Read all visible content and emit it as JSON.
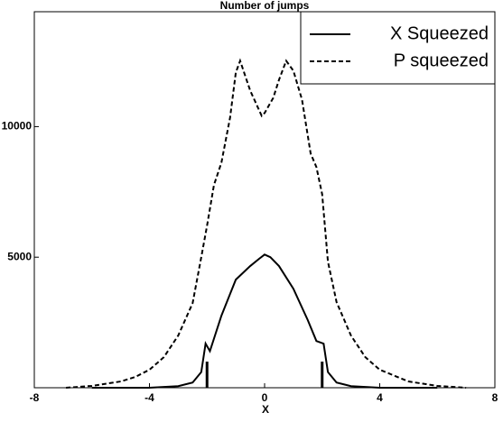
{
  "chart_data": {
    "type": "line",
    "title": "Number of jumps",
    "x_label": "X",
    "xlim": [
      -8,
      8
    ],
    "xticks": [
      -8,
      -4,
      0,
      4,
      8
    ],
    "ylim": [
      0,
      14400
    ],
    "yticks": [
      5000,
      10000
    ],
    "legend": "upper right",
    "series": [
      {
        "name": "X Squeezed",
        "color": "#000000",
        "dash": "solid",
        "x": [
          -6,
          -4,
          -3,
          -2.5,
          -2.2,
          -2.05,
          -1.9,
          -1.5,
          -1,
          -0.5,
          -0.2,
          0,
          0.2,
          0.5,
          1,
          1.5,
          1.8,
          2.05,
          2.2,
          2.5,
          3,
          4,
          6
        ],
        "values": [
          0,
          0,
          60,
          200,
          600,
          1690,
          1400,
          2760,
          4140,
          4660,
          4930,
          5100,
          5000,
          4660,
          3790,
          2590,
          1790,
          1690,
          600,
          200,
          60,
          0,
          0
        ]
      },
      {
        "name": "P squeezed",
        "color": "#000000",
        "dash": "dashed",
        "x": [
          -6.9,
          -6,
          -5,
          -4.5,
          -4,
          -3.5,
          -3,
          -2.5,
          -2.2,
          -2,
          -1.76,
          -1.5,
          -1.2,
          -1,
          -0.85,
          -0.5,
          -0.1,
          0,
          0.3,
          0.5,
          0.75,
          1,
          1.3,
          1.6,
          1.8,
          2,
          2.2,
          2.5,
          3,
          3.5,
          4,
          5,
          6,
          7
        ],
        "values": [
          0,
          70,
          240,
          410,
          690,
          1170,
          2000,
          3240,
          5000,
          6200,
          7760,
          8620,
          10340,
          12070,
          12520,
          11380,
          10410,
          10520,
          11100,
          11790,
          12520,
          12140,
          11030,
          8970,
          8450,
          7410,
          4830,
          3280,
          2000,
          1170,
          690,
          240,
          70,
          0
        ]
      }
    ],
    "markers": {
      "x": [
        -2,
        2
      ],
      "values": [
        1000,
        1000
      ]
    }
  }
}
